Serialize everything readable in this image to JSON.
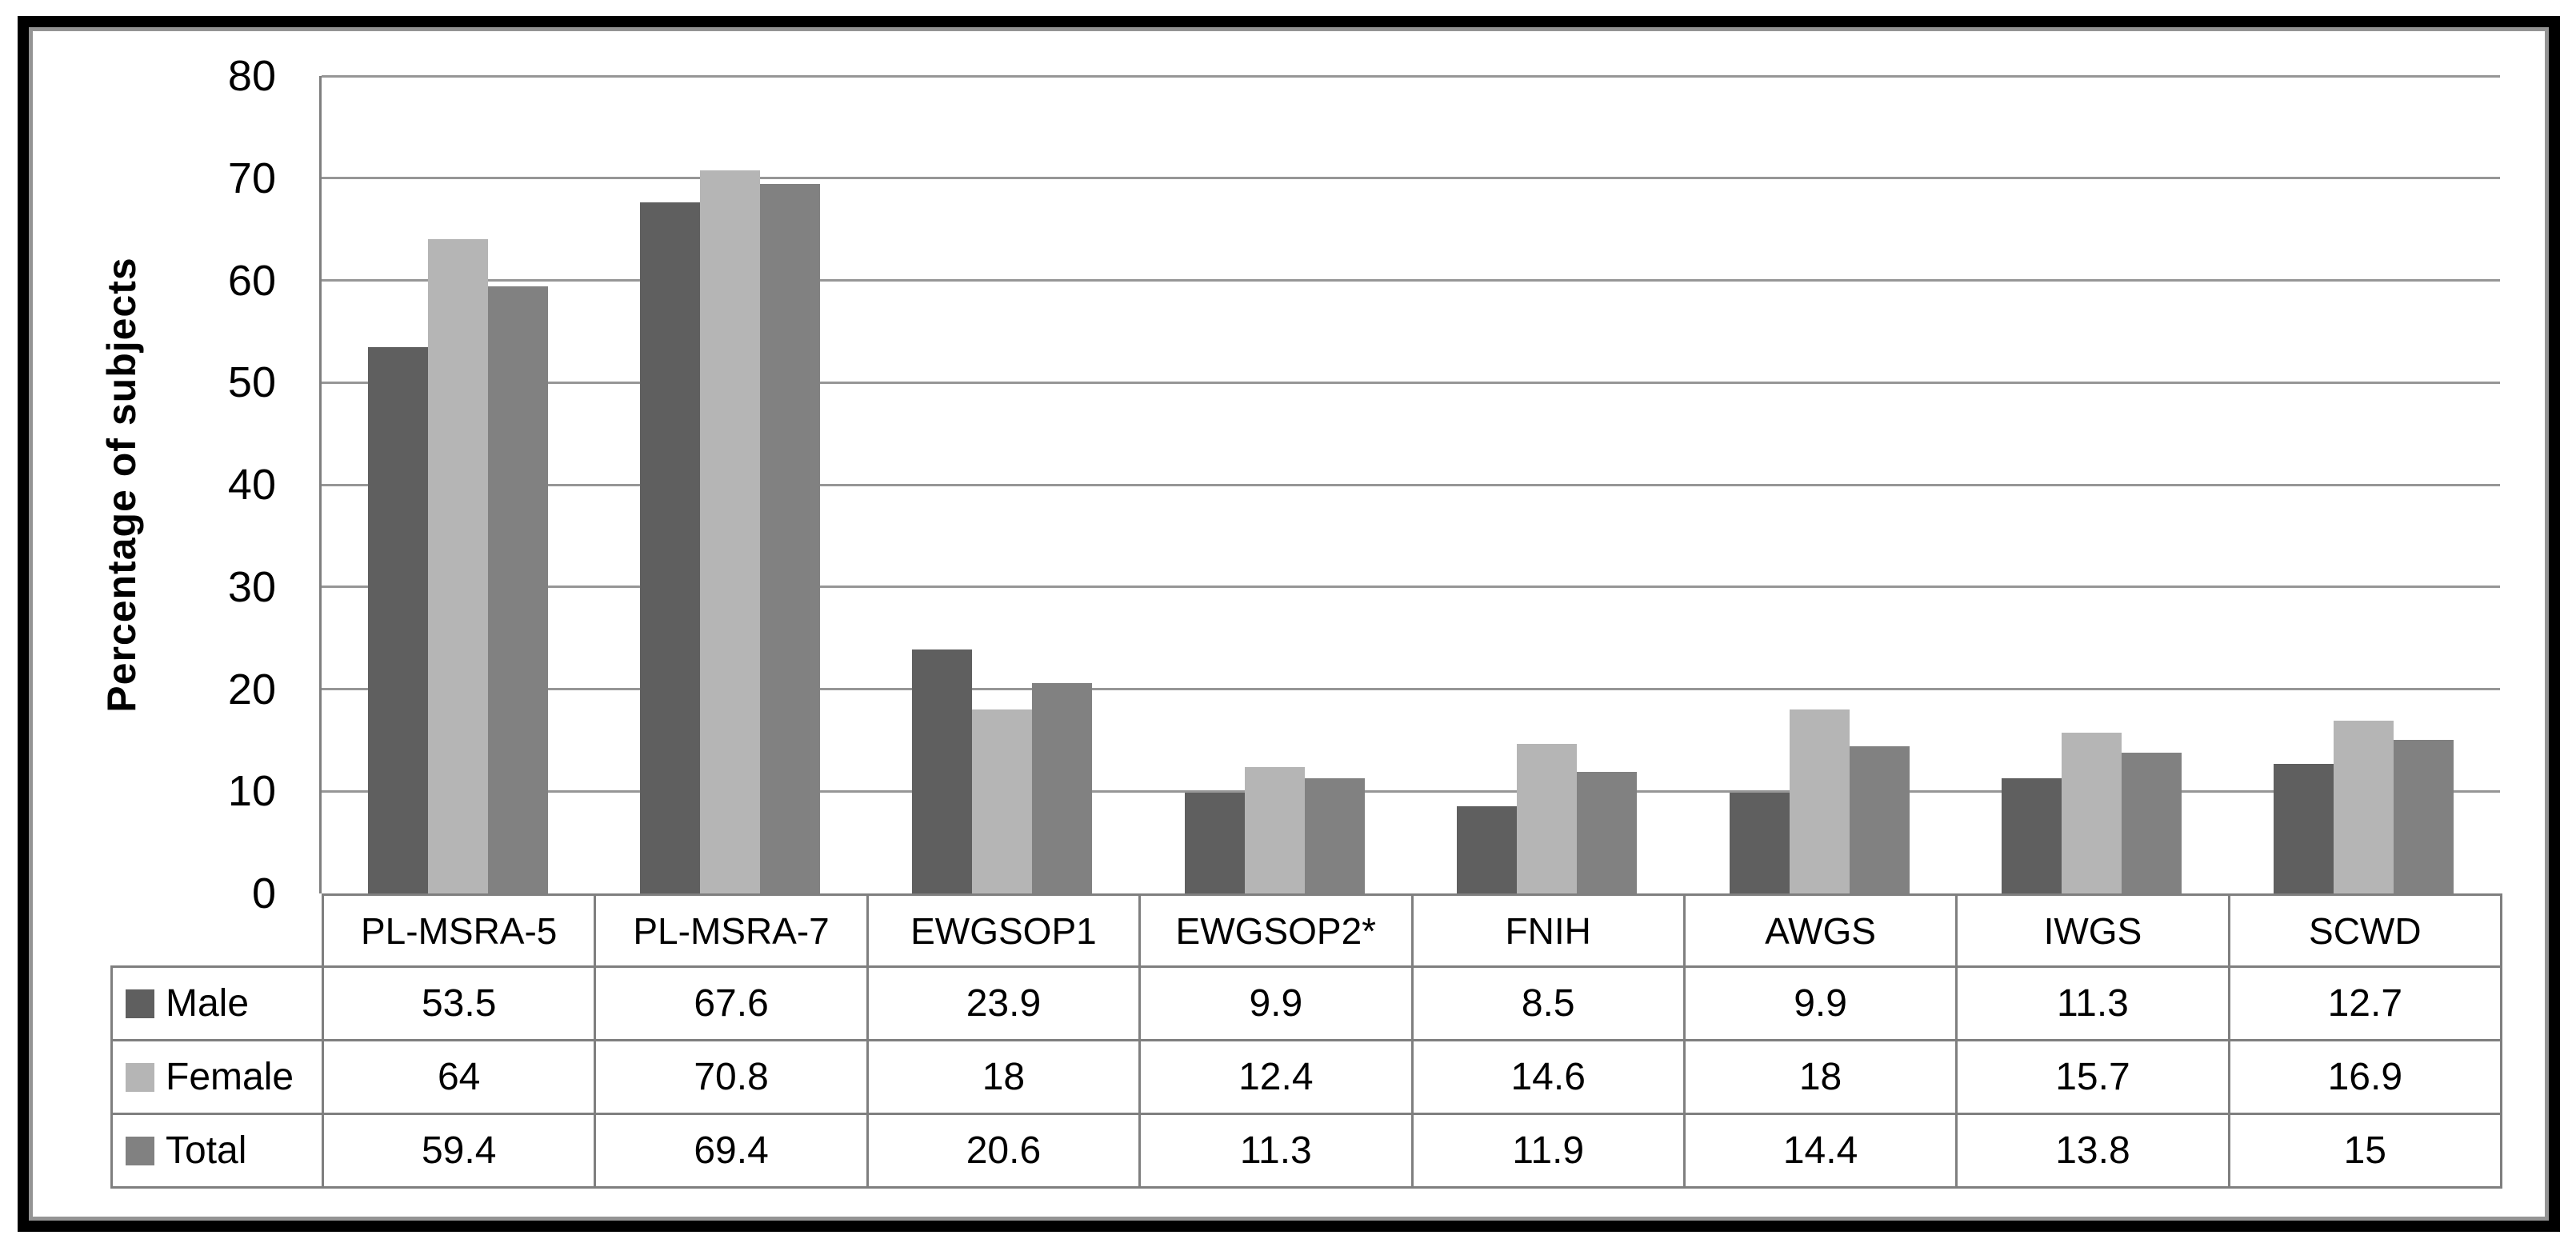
{
  "chart_data": {
    "type": "bar",
    "title": "",
    "ylabel": "Percentage of subjects",
    "xlabel": "",
    "ylim": [
      0,
      80
    ],
    "yticks": [
      0,
      10,
      20,
      30,
      40,
      50,
      60,
      70,
      80
    ],
    "grid": "horizontal",
    "legend_position": "table-left",
    "categories": [
      "PL-MSRA-5",
      "PL-MSRA-7",
      "EWGSOP1",
      "EWGSOP2*",
      "FNIH",
      "AWGS",
      "IWGS",
      "SCWD"
    ],
    "series": [
      {
        "name": "Male",
        "color": "#5f5f5f",
        "values": [
          53.5,
          67.6,
          23.9,
          9.9,
          8.5,
          9.9,
          11.3,
          12.7
        ]
      },
      {
        "name": "Female",
        "color": "#b5b5b5",
        "values": [
          64,
          70.8,
          18,
          12.4,
          14.6,
          18,
          15.7,
          16.9
        ]
      },
      {
        "name": "Total",
        "color": "#818181",
        "values": [
          59.4,
          69.4,
          20.6,
          11.3,
          11.9,
          14.4,
          13.8,
          15
        ]
      }
    ]
  },
  "colors": {
    "gridline": "#969696",
    "axis": "#7f7f7f",
    "table_border": "#7f7f7f",
    "frame": "#000000",
    "frame_inner": "#949494",
    "text": "#000000"
  }
}
